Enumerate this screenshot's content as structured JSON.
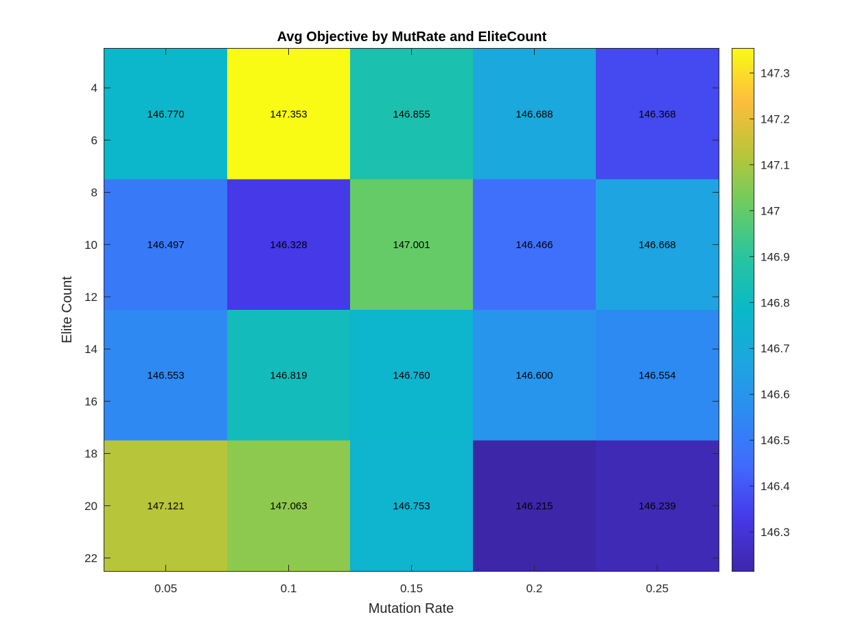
{
  "chart_data": {
    "type": "heatmap",
    "title": "Avg Objective by MutRate and EliteCount",
    "xlabel": "Mutation Rate",
    "ylabel": "Elite Count",
    "x_categories": [
      "0.05",
      "0.1",
      "0.15",
      "0.2",
      "0.25"
    ],
    "y_categories": [
      5,
      10,
      15,
      20
    ],
    "y_range": [
      2.5,
      22.5
    ],
    "y_ticks": [
      "4",
      "6",
      "8",
      "10",
      "12",
      "14",
      "16",
      "18",
      "20",
      "22"
    ],
    "values": [
      [
        146.77,
        147.353,
        146.855,
        146.688,
        146.368
      ],
      [
        146.497,
        146.328,
        147.001,
        146.466,
        146.668
      ],
      [
        146.553,
        146.819,
        146.76,
        146.6,
        146.554
      ],
      [
        147.121,
        147.063,
        146.753,
        146.215,
        146.239
      ]
    ],
    "value_labels": [
      [
        "146.770",
        "147.353",
        "146.855",
        "146.688",
        "146.368"
      ],
      [
        "146.497",
        "146.328",
        "147.001",
        "146.466",
        "146.668"
      ],
      [
        "146.553",
        "146.819",
        "146.760",
        "146.600",
        "146.554"
      ],
      [
        "147.121",
        "147.063",
        "146.753",
        "146.215",
        "146.239"
      ]
    ],
    "colorbar": {
      "range": [
        146.215,
        147.353
      ],
      "ticks": [
        "146.3",
        "146.4",
        "146.5",
        "146.6",
        "146.7",
        "146.8",
        "146.9",
        "147",
        "147.1",
        "147.2",
        "147.3"
      ],
      "colormap": "parula"
    },
    "grid": false,
    "legend": "none"
  }
}
